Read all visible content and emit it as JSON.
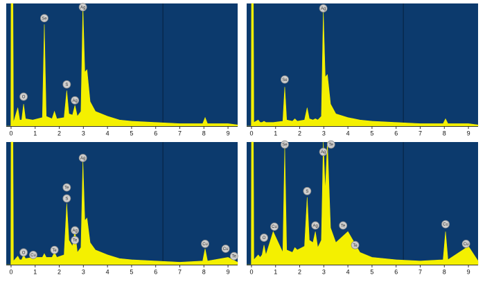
{
  "chart_data": [
    {
      "type": "area",
      "color": "#f4f000",
      "xlim": [
        -0.2,
        9.4
      ],
      "ylim": [
        0,
        100
      ],
      "xticks": [
        0,
        1,
        2,
        3,
        4,
        5,
        6,
        7,
        8,
        9
      ],
      "x": [
        -0.2,
        -0.01,
        0,
        0.08,
        0.1,
        0.28,
        0.36,
        0.44,
        0.52,
        0.6,
        0.9,
        1.3,
        1.38,
        1.46,
        1.7,
        1.8,
        1.9,
        2.2,
        2.31,
        2.4,
        2.55,
        2.65,
        2.75,
        2.9,
        2.98,
        3.06,
        3.15,
        3.28,
        3.5,
        4,
        4.5,
        5,
        6,
        7,
        7.95,
        8.05,
        8.15,
        9,
        9.4
      ],
      "values": [
        0,
        0,
        100,
        100,
        3,
        15,
        5,
        5,
        18,
        6,
        5,
        7,
        83,
        8,
        6,
        12,
        6,
        7,
        29,
        10,
        9,
        17,
        8,
        12,
        98,
        44,
        46,
        20,
        12,
        8,
        5,
        4,
        3,
        2,
        2,
        7,
        2,
        2,
        1
      ],
      "labels": [
        {
          "text": "O",
          "x": 0.52,
          "y": 24
        },
        {
          "text": "Se",
          "x": 1.38,
          "y": 88
        },
        {
          "text": "S",
          "x": 2.31,
          "y": 34
        },
        {
          "text": "Ag",
          "x": 2.65,
          "y": 21
        },
        {
          "text": "Ag",
          "x": 2.98,
          "y": 97
        }
      ]
    },
    {
      "type": "area",
      "color": "#f4f000",
      "xlim": [
        -0.2,
        9.4
      ],
      "ylim": [
        0,
        100
      ],
      "xticks": [
        0,
        1,
        2,
        3,
        4,
        5,
        6,
        7,
        8,
        9
      ],
      "x": [
        -0.2,
        -0.01,
        0,
        0.08,
        0.1,
        0.28,
        0.36,
        0.44,
        0.52,
        0.6,
        0.9,
        1.3,
        1.38,
        1.46,
        1.7,
        1.8,
        1.9,
        2.2,
        2.31,
        2.4,
        2.55,
        2.65,
        2.75,
        2.9,
        2.98,
        3.06,
        3.15,
        3.28,
        3.5,
        4,
        4.5,
        5,
        6,
        7,
        7.95,
        8.05,
        8.15,
        9,
        9.4
      ],
      "values": [
        0,
        0,
        100,
        100,
        3,
        5,
        3,
        3,
        4,
        3,
        3,
        4,
        32,
        5,
        4,
        6,
        4,
        5,
        15,
        6,
        5,
        6,
        5,
        8,
        94,
        40,
        42,
        18,
        10,
        7,
        5,
        4,
        3,
        2,
        2,
        6,
        2,
        2,
        1
      ],
      "labels": [
        {
          "text": "Se",
          "x": 1.38,
          "y": 38
        },
        {
          "text": "Ag",
          "x": 2.98,
          "y": 96
        }
      ]
    },
    {
      "type": "area",
      "color": "#f4f000",
      "xlim": [
        -0.2,
        9.4
      ],
      "ylim": [
        0,
        100
      ],
      "xticks": [
        0,
        1,
        2,
        3,
        4,
        5,
        6,
        7,
        8,
        9
      ],
      "x": [
        -0.2,
        -0.01,
        0,
        0.08,
        0.1,
        0.28,
        0.36,
        0.44,
        0.52,
        0.6,
        0.9,
        1.3,
        1.38,
        1.46,
        1.7,
        1.8,
        1.9,
        2.2,
        2.31,
        2.4,
        2.55,
        2.65,
        2.75,
        2.9,
        2.98,
        3.06,
        3.15,
        3.28,
        3.5,
        4,
        4.5,
        5,
        6,
        7,
        7.95,
        8.05,
        8.15,
        9,
        9.4
      ],
      "values": [
        0,
        0,
        100,
        100,
        3,
        7,
        4,
        4,
        8,
        5,
        6,
        6,
        9,
        6,
        6,
        10,
        6,
        8,
        50,
        20,
        15,
        28,
        10,
        14,
        85,
        36,
        38,
        18,
        12,
        8,
        5,
        4,
        3,
        2,
        3,
        13,
        3,
        6,
        2
      ],
      "labels": [
        {
          "text": "O",
          "x": 0.52,
          "y": 10
        },
        {
          "text": "Cu",
          "x": 0.92,
          "y": 8
        },
        {
          "text": "Te",
          "x": 1.8,
          "y": 12
        },
        {
          "text": "Te",
          "x": 2.31,
          "y": 63
        },
        {
          "text": "S",
          "x": 2.31,
          "y": 54
        },
        {
          "text": "Ag",
          "x": 2.65,
          "y": 28
        },
        {
          "text": "Te",
          "x": 2.65,
          "y": 20
        },
        {
          "text": "Ag",
          "x": 2.98,
          "y": 87
        },
        {
          "text": "Cu",
          "x": 8.05,
          "y": 17
        },
        {
          "text": "Cu",
          "x": 8.9,
          "y": 13
        },
        {
          "text": "Te",
          "x": 9.25,
          "y": 7
        }
      ]
    },
    {
      "type": "area",
      "color": "#f4f000",
      "xlim": [
        -0.2,
        9.4
      ],
      "ylim": [
        0,
        100
      ],
      "xticks": [
        0,
        1,
        2,
        3,
        4,
        5,
        6,
        7,
        8,
        9
      ],
      "x": [
        -0.2,
        -0.01,
        0,
        0.08,
        0.1,
        0.28,
        0.36,
        0.44,
        0.52,
        0.6,
        0.9,
        1.3,
        1.38,
        1.46,
        1.7,
        1.8,
        1.9,
        2.2,
        2.31,
        2.4,
        2.55,
        2.65,
        2.75,
        2.9,
        2.98,
        3.06,
        3.15,
        3.28,
        3.5,
        4,
        4.5,
        5,
        6,
        7,
        7.95,
        8.05,
        8.15,
        9,
        9.4
      ],
      "values": [
        0,
        0,
        100,
        100,
        4,
        8,
        6,
        8,
        16,
        8,
        27,
        10,
        96,
        12,
        10,
        14,
        12,
        15,
        55,
        20,
        18,
        27,
        14,
        20,
        100,
        60,
        100,
        30,
        18,
        27,
        10,
        6,
        4,
        3,
        4,
        27,
        4,
        15,
        3
      ],
      "labels": [
        {
          "text": "O",
          "x": 0.52,
          "y": 22
        },
        {
          "text": "Cu",
          "x": 0.95,
          "y": 31
        },
        {
          "text": "Se",
          "x": 1.38,
          "y": 98
        },
        {
          "text": "S",
          "x": 2.31,
          "y": 60
        },
        {
          "text": "Ag",
          "x": 2.65,
          "y": 32
        },
        {
          "text": "Ag",
          "x": 2.98,
          "y": 92
        },
        {
          "text": "Te",
          "x": 3.3,
          "y": 98
        },
        {
          "text": "Te",
          "x": 3.8,
          "y": 32
        },
        {
          "text": "Te",
          "x": 4.3,
          "y": 16
        },
        {
          "text": "Cu",
          "x": 8.05,
          "y": 33
        },
        {
          "text": "Cu",
          "x": 8.9,
          "y": 17
        }
      ]
    }
  ]
}
